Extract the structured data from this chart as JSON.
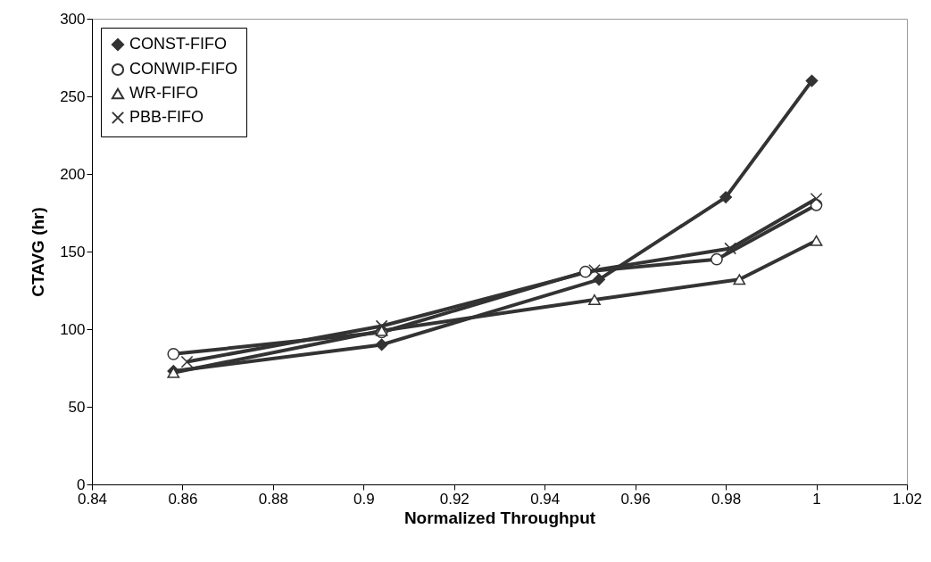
{
  "chart_data": {
    "type": "line",
    "xlabel": "Normalized Throughput",
    "ylabel": "CTAVG (hr)",
    "xlim": [
      0.84,
      1.02
    ],
    "xticks": [
      0.84,
      0.86,
      0.88,
      0.9,
      0.92,
      0.94,
      0.96,
      0.98,
      1,
      1.02
    ],
    "ylim": [
      0,
      300
    ],
    "yticks": [
      0,
      50,
      100,
      150,
      200,
      250,
      300
    ],
    "grid": false,
    "legend": "top left",
    "series": [
      {
        "name": "CONST-FIFO",
        "color": "#333333",
        "marker": "diamond",
        "x": [
          0.858,
          0.904,
          0.952,
          0.98,
          0.999
        ],
        "values": [
          73,
          90,
          132,
          185,
          260
        ]
      },
      {
        "name": "CONWIP-FIFO",
        "color": "#333333",
        "marker": "circle",
        "x": [
          0.858,
          0.904,
          0.949,
          0.978,
          1.0
        ],
        "values": [
          84,
          98,
          137,
          145,
          180
        ]
      },
      {
        "name": "WR-FIFO",
        "color": "#333333",
        "marker": "triangle",
        "x": [
          0.858,
          0.904,
          0.951,
          0.983,
          1.0
        ],
        "values": [
          72,
          99,
          119,
          132,
          157
        ]
      },
      {
        "name": "PBB-FIFO",
        "color": "#333333",
        "marker": "cross",
        "x": [
          0.861,
          0.904,
          0.951,
          0.981,
          1.0
        ],
        "values": [
          79,
          102,
          138,
          152,
          184
        ]
      }
    ]
  }
}
